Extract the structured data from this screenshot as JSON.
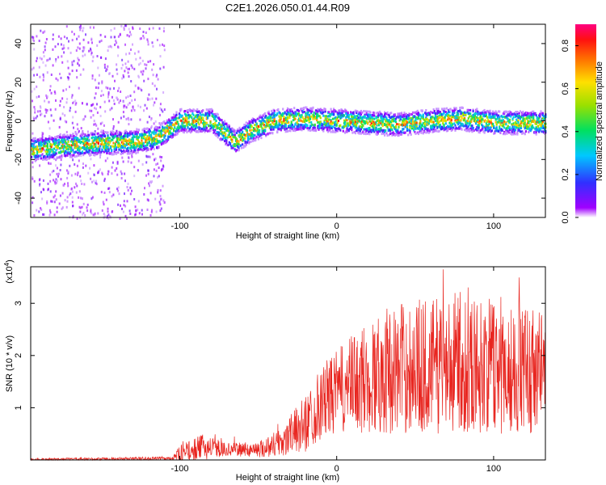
{
  "title": "C2E1.2026.050.01.44.R09",
  "chart_data": [
    {
      "type": "heatmap",
      "name": "spectrogram",
      "xlabel": "Height of straight line (km)",
      "ylabel": "Frequency (Hz)",
      "xlim": [
        -195,
        133
      ],
      "ylim": [
        -50,
        50
      ],
      "x_ticks": [
        -100,
        0,
        100
      ],
      "y_ticks": [
        -40,
        -20,
        0,
        20,
        40
      ],
      "grid": false,
      "colorbar": {
        "label": "Normalized spectral amplitude",
        "range": [
          0,
          0.9
        ],
        "ticks": [
          0,
          0.2,
          0.4,
          0.6,
          0.8
        ],
        "tick_labels": [
          "0.0",
          "0.2",
          "0.4",
          "0.6",
          "0.8"
        ],
        "colormap": "rainbow (white-purple-blue-cyan-green-yellow-orange-red-magenta)"
      },
      "ridge": {
        "description": "dominant frequency band center",
        "x": [
          -195,
          -160,
          -130,
          -115,
          -100,
          -80,
          -65,
          -55,
          -40,
          -20,
          0,
          20,
          40,
          60,
          80,
          100,
          133
        ],
        "y": [
          -15,
          -12,
          -11,
          -9,
          0,
          0,
          -11,
          -5,
          0,
          1,
          0,
          -1,
          -2,
          0,
          1,
          -1,
          -1
        ]
      }
    },
    {
      "type": "line",
      "name": "snr",
      "xlabel": "Height of straight line (km)",
      "ylabel": "SNR (10 * v/v)",
      "y_multiplier": "(x10",
      "y_multiplier_exp": "4",
      "y_multiplier_close": ")",
      "xlim": [
        -195,
        133
      ],
      "ylim": [
        0,
        3.7
      ],
      "x_ticks": [
        -100,
        0,
        100
      ],
      "y_ticks": [
        1,
        2,
        3
      ],
      "grid": false,
      "color": "#e8251f",
      "envelope": {
        "description": "approximate mean and spread of the noisy SNR trace (x10^4)",
        "x": [
          -195,
          -140,
          -105,
          -100,
          -85,
          -70,
          -50,
          -35,
          -20,
          -10,
          0,
          10,
          20,
          30,
          40,
          50,
          60,
          70,
          80,
          90,
          100,
          110,
          120,
          133
        ],
        "mean": [
          0.01,
          0.02,
          0.03,
          0.12,
          0.25,
          0.2,
          0.2,
          0.35,
          0.7,
          1.1,
          1.3,
          1.45,
          1.55,
          1.7,
          1.75,
          1.8,
          1.8,
          1.85,
          1.9,
          1.8,
          1.8,
          1.75,
          1.75,
          1.75
        ],
        "spread": [
          0.02,
          0.03,
          0.04,
          0.15,
          0.25,
          0.12,
          0.15,
          0.3,
          0.55,
          0.7,
          0.8,
          0.95,
          1.1,
          1.2,
          1.25,
          1.3,
          1.3,
          1.35,
          1.35,
          1.3,
          1.3,
          1.25,
          1.25,
          1.2
        ]
      },
      "peak_max": 3.65
    }
  ]
}
